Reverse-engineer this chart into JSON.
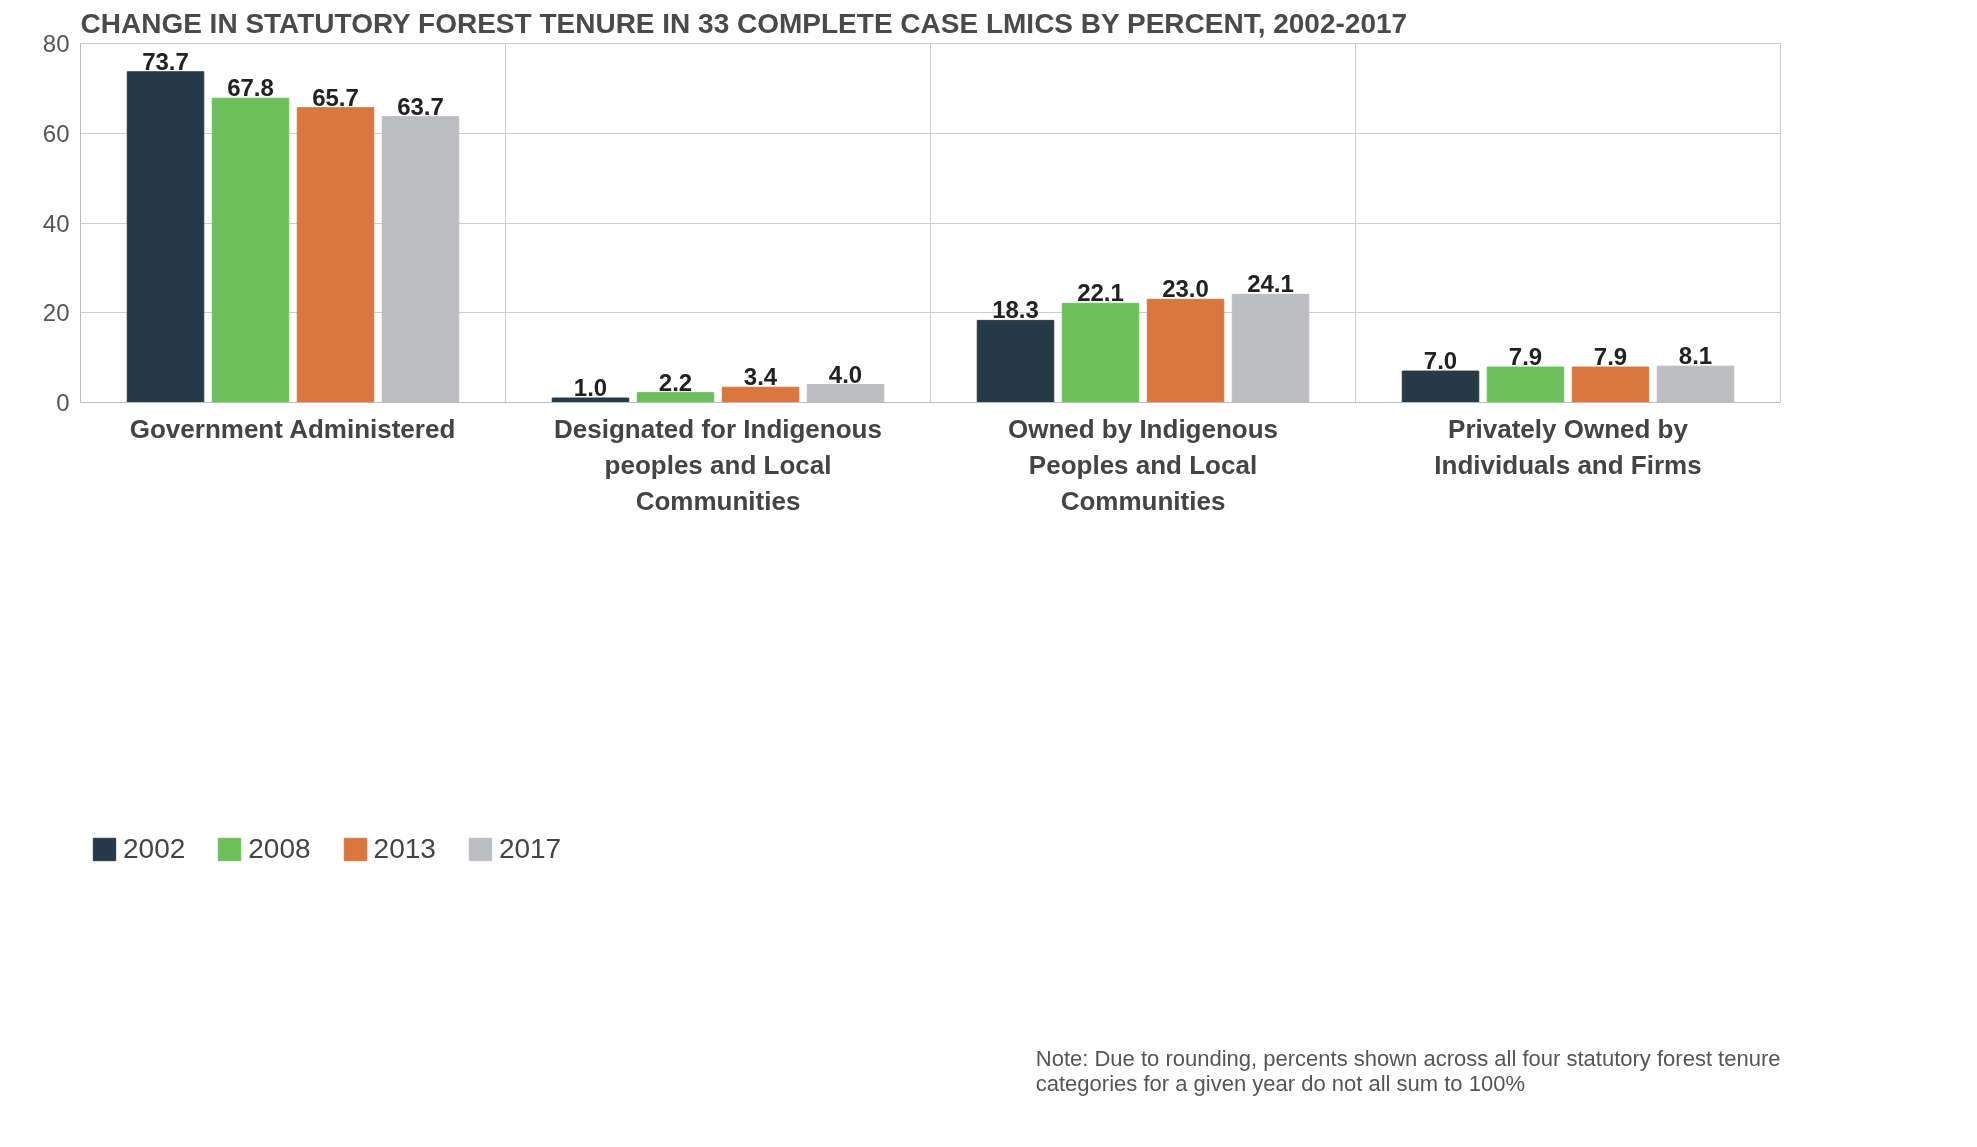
{
  "chart_data": {
    "type": "bar",
    "title": "CHANGE IN STATUTORY FOREST TENURE IN 33 COMPLETE CASE LMICS BY PERCENT, 2002-2017",
    "categories": [
      "Government Administered",
      "Designated for Indigenous peoples and Local Communities",
      "Owned by Indigenous Peoples and Local Communities",
      "Privately Owned by Individuals and Firms"
    ],
    "series": [
      {
        "name": "2002",
        "color": "#263a47",
        "values": [
          73.7,
          1.0,
          18.3,
          7.0
        ],
        "value_labels": [
          "73.7",
          "1.0",
          "18.3",
          "7.0"
        ]
      },
      {
        "name": "2008",
        "color": "#6cc05c",
        "values": [
          67.8,
          2.2,
          22.1,
          7.9
        ],
        "value_labels": [
          "67.8",
          "2.2",
          "22.1",
          "7.9"
        ]
      },
      {
        "name": "2013",
        "color": "#d9773f",
        "values": [
          65.7,
          3.4,
          23.0,
          7.9
        ],
        "value_labels": [
          "65.7",
          "3.4",
          "23.0",
          "7.9"
        ]
      },
      {
        "name": "2017",
        "color": "#bcbdc0",
        "values": [
          63.7,
          4.0,
          24.1,
          8.1
        ],
        "value_labels": [
          "63.7",
          "4.0",
          "24.1",
          "8.1"
        ]
      }
    ],
    "ylim": [
      0,
      80
    ],
    "yticks": [
      0,
      20,
      40,
      60,
      80
    ],
    "grid": true,
    "legend": "bottom left",
    "annotations": [
      "Note: Due to rounding, percents shown across all four statutory forest tenure categories for a given year do not all sum to 100%"
    ]
  }
}
